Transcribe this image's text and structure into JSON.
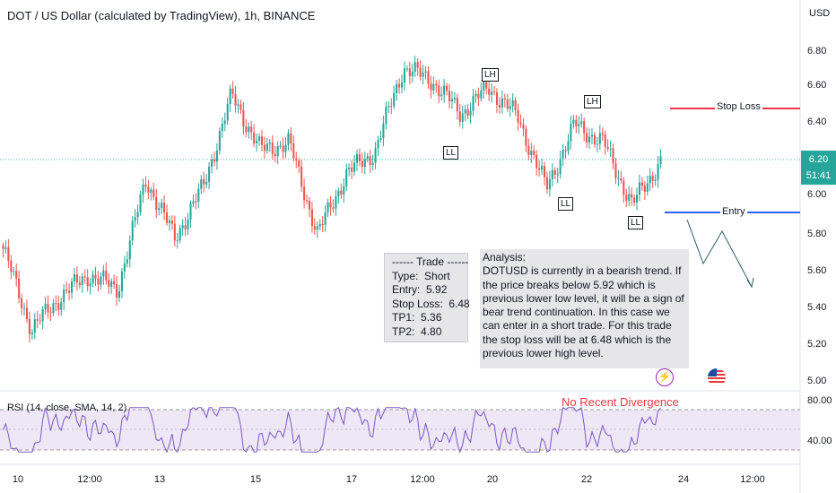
{
  "header": {
    "title": "DOT / US Dollar (calculated by TradingView), 1h, BINANCE",
    "currency": "USD"
  },
  "price_axis": {
    "ticks": [
      "6.80",
      "6.60",
      "6.40",
      "6.20",
      "6.00",
      "5.80",
      "5.60",
      "5.40",
      "5.20",
      "5.00"
    ],
    "current_price": "6.20",
    "countdown": "51:41"
  },
  "time_axis": {
    "ticks": [
      "10",
      "12:00",
      "13",
      "15",
      "17",
      "12:00",
      "20",
      "22",
      "24",
      "12:00"
    ]
  },
  "markers": [
    "LH",
    "LH",
    "LL",
    "LL",
    "LL",
    "LL"
  ],
  "trade_box": {
    "header": "------ Trade ------",
    "type": "Type:  Short",
    "entry": "Entry:  5.92",
    "stop": "Stop Loss:  6.48",
    "tp1": "TP1:  5.36",
    "tp2": "TP2:  4.80"
  },
  "analysis": {
    "heading": "Analysis:",
    "body": "DOTUSD is currently in a bearish trend. If the price breaks below 5.92 which is previous lower low level, it will be a sign of bear trend continuation. In this case we can enter in a short trade. For this trade the stop loss will be at 6.48 which is the previous lower high level."
  },
  "levels": {
    "stop_loss_label": "Stop Loss",
    "entry_label": "Entry"
  },
  "rsi": {
    "title": "RSI (14, close, SMA, 14, 2)",
    "annotation": "No Recent Divergence",
    "ticks": [
      "80.00",
      "40.00"
    ]
  },
  "colors": {
    "up": "#26a69a",
    "down": "#ef5350",
    "stop_loss": "#f23645",
    "entry": "#2962ff",
    "rsi_line": "#7e57c2",
    "rsi_band": "#ede7f6",
    "price_line": "#26a69a"
  },
  "icons": [
    "lightning-icon",
    "us-flag-icon"
  ],
  "chart_data": {
    "type": "candlestick",
    "symbol": "DOT / US Dollar",
    "interval": "1h",
    "exchange": "BINANCE",
    "ylim": [
      4.95,
      6.95
    ],
    "x_categories": [
      "10",
      "12:00",
      "13",
      "15",
      "17",
      "12:00",
      "20",
      "22",
      "24",
      "12:00"
    ],
    "price_path": [
      {
        "x": "10",
        "y": 5.72
      },
      {
        "x": "10",
        "y": 5.28
      },
      {
        "x": "12:00",
        "y": 5.46
      },
      {
        "x": "12:00",
        "y": 5.58
      },
      {
        "x": "13",
        "y": 5.5
      },
      {
        "x": "13",
        "y": 6.1
      },
      {
        "x": "13",
        "y": 5.78
      },
      {
        "x": "15",
        "y": 6.06
      },
      {
        "x": "15",
        "y": 6.56
      },
      {
        "x": "15",
        "y": 6.26
      },
      {
        "x": "15",
        "y": 6.3
      },
      {
        "x": "17",
        "y": 5.8
      },
      {
        "x": "17",
        "y": 6.13
      },
      {
        "x": "17",
        "y": 6.25
      },
      {
        "x": "12:00",
        "y": 6.71
      },
      {
        "x": "12:00",
        "y": 6.64
      },
      {
        "x": "12:00",
        "y": 6.46
      },
      {
        "x": "20",
        "y": 6.6
      },
      {
        "x": "20",
        "y": 6.44
      },
      {
        "x": "22",
        "y": 6.05
      },
      {
        "x": "22",
        "y": 6.4
      },
      {
        "x": "22",
        "y": 6.3
      },
      {
        "x": "24",
        "y": 5.96
      },
      {
        "x": "24",
        "y": 6.2
      }
    ],
    "current_price": 6.2,
    "stop_loss": 6.48,
    "entry": 5.92,
    "tp1": 5.36,
    "tp2": 4.8,
    "rsi": {
      "levels": [
        70,
        30
      ],
      "ticks": [
        80,
        40
      ],
      "approx_range": [
        28,
        72
      ]
    }
  }
}
